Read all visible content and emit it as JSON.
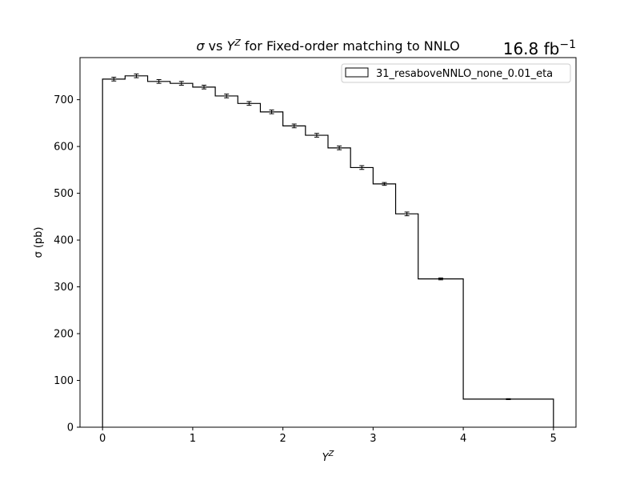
{
  "chart_data": {
    "type": "histogram",
    "title": {
      "sigma": "σ",
      "vs": " vs ",
      "y": "Y",
      "sup": "Z",
      "rest": " for Fixed-order matching to NNLO"
    },
    "luminosity": {
      "value": "16.8 fb",
      "sup": "−1"
    },
    "xlabel": {
      "main": "Y",
      "sup": "Z"
    },
    "ylabel": "σ (pb)",
    "xlim": [
      -0.25,
      5.25
    ],
    "ylim": [
      0,
      790
    ],
    "xticks": [
      0,
      1,
      2,
      3,
      4,
      5
    ],
    "yticks": [
      0,
      100,
      200,
      300,
      400,
      500,
      600,
      700
    ],
    "grid": false,
    "legend_position": "top-right",
    "series": [
      {
        "name": "31_resaboveNNLO_none_0.01_eta",
        "color": "#000000",
        "bin_edges": [
          0,
          0.25,
          0.5,
          0.75,
          1.0,
          1.25,
          1.5,
          1.75,
          2.0,
          2.25,
          2.5,
          2.75,
          3.0,
          3.25,
          3.5,
          4.0,
          5.0
        ],
        "values": [
          744,
          751,
          739,
          735,
          727,
          708,
          692,
          674,
          644,
          624,
          597,
          555,
          520,
          456,
          317,
          60
        ],
        "errors": [
          4,
          4,
          4,
          4,
          4,
          4,
          4,
          4,
          4,
          4,
          4,
          4,
          3,
          4,
          2,
          1
        ]
      }
    ]
  }
}
